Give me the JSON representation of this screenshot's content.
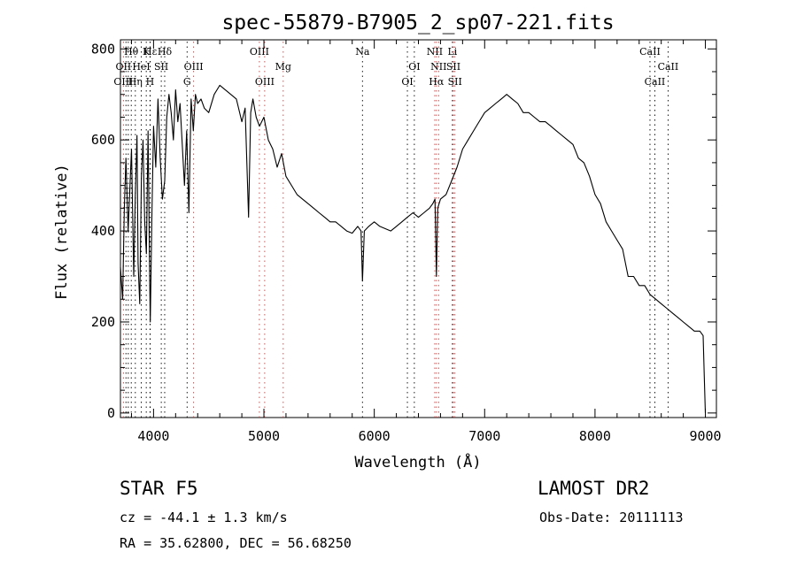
{
  "chart_data": {
    "type": "line",
    "title": "spec-55879-B7905_2_sp07-221.fits",
    "xlabel": "Wavelength (Å)",
    "ylabel": "Flux (relative)",
    "xlim": [
      3700,
      9100
    ],
    "ylim": [
      -10,
      820
    ],
    "xticks": [
      4000,
      5000,
      6000,
      7000,
      8000,
      9000
    ],
    "yticks": [
      0,
      200,
      400,
      600,
      800
    ],
    "grid": false,
    "legend": "none",
    "series": [
      {
        "x": [
          3700,
          3720,
          3735,
          3750,
          3770,
          3790,
          3800,
          3820,
          3835,
          3850,
          3860,
          3875,
          3890,
          3905,
          3920,
          3935,
          3950,
          3965,
          3970,
          3985,
          4000,
          4020,
          4040,
          4060,
          4080,
          4101,
          4120,
          4140,
          4160,
          4180,
          4200,
          4220,
          4240,
          4260,
          4280,
          4300,
          4320,
          4340,
          4360,
          4380,
          4400,
          4430,
          4460,
          4500,
          4550,
          4600,
          4650,
          4700,
          4750,
          4800,
          4830,
          4861,
          4880,
          4900,
          4930,
          4960,
          5000,
          5040,
          5080,
          5120,
          5160,
          5200,
          5250,
          5300,
          5350,
          5400,
          5450,
          5500,
          5550,
          5600,
          5650,
          5700,
          5750,
          5800,
          5850,
          5880,
          5893,
          5910,
          5950,
          6000,
          6050,
          6100,
          6150,
          6200,
          6250,
          6300,
          6350,
          6400,
          6450,
          6500,
          6530,
          6550,
          6563,
          6575,
          6600,
          6650,
          6700,
          6750,
          6800,
          6850,
          6900,
          6950,
          7000,
          7050,
          7100,
          7150,
          7200,
          7250,
          7300,
          7350,
          7400,
          7450,
          7500,
          7550,
          7600,
          7650,
          7700,
          7750,
          7800,
          7850,
          7900,
          7950,
          8000,
          8050,
          8100,
          8150,
          8200,
          8250,
          8300,
          8350,
          8400,
          8450,
          8500,
          8550,
          8600,
          8650,
          8700,
          8750,
          8800,
          8850,
          8900,
          8950,
          8980,
          8990,
          9000
        ],
        "y": [
          320,
          250,
          450,
          560,
          400,
          520,
          580,
          300,
          480,
          610,
          330,
          240,
          520,
          600,
          420,
          350,
          620,
          300,
          200,
          430,
          630,
          540,
          690,
          560,
          470,
          510,
          650,
          700,
          660,
          600,
          710,
          640,
          680,
          590,
          500,
          620,
          440,
          690,
          620,
          700,
          680,
          690,
          670,
          660,
          700,
          720,
          710,
          700,
          690,
          640,
          670,
          430,
          660,
          690,
          650,
          630,
          650,
          600,
          580,
          540,
          570,
          520,
          500,
          480,
          470,
          460,
          450,
          440,
          430,
          420,
          420,
          410,
          400,
          395,
          410,
          400,
          290,
          400,
          410,
          420,
          410,
          405,
          400,
          410,
          420,
          430,
          440,
          430,
          440,
          450,
          460,
          470,
          300,
          450,
          470,
          480,
          510,
          540,
          580,
          600,
          620,
          640,
          660,
          670,
          680,
          690,
          700,
          690,
          680,
          660,
          660,
          650,
          640,
          640,
          630,
          620,
          610,
          600,
          590,
          560,
          550,
          520,
          480,
          460,
          420,
          400,
          380,
          360,
          300,
          300,
          280,
          280,
          260,
          250,
          240,
          230,
          220,
          210,
          200,
          190,
          180,
          180,
          170,
          80,
          0
        ]
      }
    ],
    "annotations": [
      {
        "label": "Hε",
        "x": 3970,
        "row": 1
      },
      {
        "label": "OII",
        "x": 3727,
        "row": 2
      },
      {
        "label": "OIII",
        "x": 3727,
        "row": 3
      },
      {
        "label": "Hθ",
        "x": 3798,
        "row": 1
      },
      {
        "label": "Hη",
        "x": 3835,
        "row": 3
      },
      {
        "label": "K",
        "x": 3934,
        "row": 1
      },
      {
        "label": "H",
        "x": 3968,
        "row": 3
      },
      {
        "label": "HeI",
        "x": 3889,
        "row": 2
      },
      {
        "label": "SII",
        "x": 4070,
        "row": 2
      },
      {
        "label": "Hδ",
        "x": 4101,
        "row": 1
      },
      {
        "label": "G",
        "x": 4304,
        "row": 3
      },
      {
        "label": "OIII",
        "x": 4363,
        "row": 2
      },
      {
        "label": "OIII",
        "x": 4959,
        "row": 1
      },
      {
        "label": "OIII",
        "x": 5007,
        "row": 3
      },
      {
        "label": "Mg",
        "x": 5175,
        "row": 2
      },
      {
        "label": "Na",
        "x": 5893,
        "row": 1
      },
      {
        "label": "OI",
        "x": 6300,
        "row": 3
      },
      {
        "label": "OI",
        "x": 6363,
        "row": 2
      },
      {
        "label": "NII",
        "x": 6548,
        "row": 1
      },
      {
        "label": "NII",
        "x": 6583,
        "row": 2
      },
      {
        "label": "Hα",
        "x": 6563,
        "row": 3
      },
      {
        "label": "Li",
        "x": 6708,
        "row": 1
      },
      {
        "label": "SII",
        "x": 6717,
        "row": 2
      },
      {
        "label": "SII",
        "x": 6731,
        "row": 3
      },
      {
        "label": "CaII",
        "x": 8498,
        "row": 1
      },
      {
        "label": "CaII",
        "x": 8542,
        "row": 3
      },
      {
        "label": "CaII",
        "x": 8662,
        "row": 2
      }
    ],
    "line_marks": [
      3727,
      3750,
      3771,
      3798,
      3835,
      3889,
      3934,
      3968,
      3970,
      4070,
      4101,
      4304,
      4363,
      4959,
      5007,
      5175,
      5893,
      6300,
      6363,
      6548,
      6563,
      6583,
      6708,
      6717,
      6731,
      8498,
      8542,
      8662
    ],
    "mark_colors": {
      "emission": "#d04040",
      "absorption": "#000000"
    }
  },
  "info": {
    "class_line": "STAR    F5",
    "survey": "LAMOST DR2",
    "redshift": "cz = -44.1 ± 1.3 km/s",
    "obs_date": "Obs-Date: 20111113",
    "coords": "RA =  35.62800, DEC =  56.68250"
  }
}
